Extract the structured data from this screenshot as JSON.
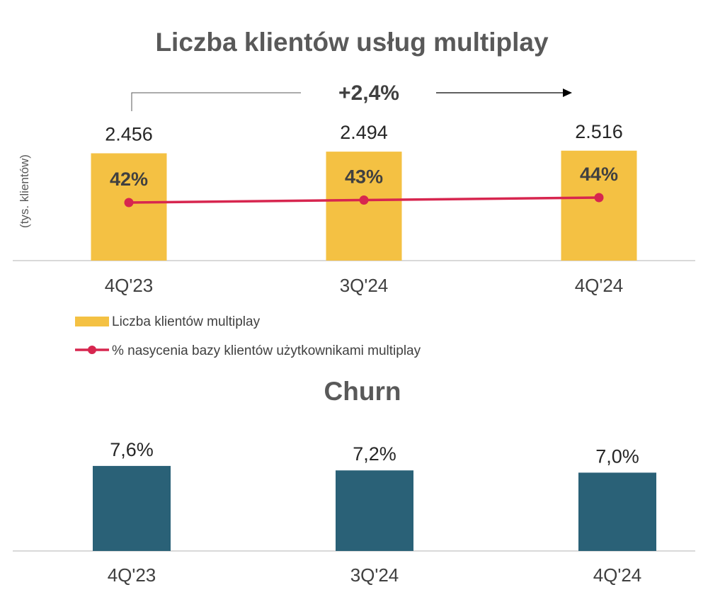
{
  "chart_data": [
    {
      "type": "bar",
      "title": "Liczba klientów usług multiplay",
      "ylabel": "(tys. klientów)",
      "growth_label": "+2,4%",
      "categories": [
        "4Q'23",
        "3Q'24",
        "4Q'24"
      ],
      "ylim": [
        0,
        2600
      ],
      "legend_position": "bottom-left",
      "series": [
        {
          "name": "Liczba klientów multiplay",
          "type": "bar",
          "color": "#F4C143",
          "values": [
            2456,
            2494,
            2516
          ],
          "labels": [
            "2.456",
            "2.494",
            "2.516"
          ]
        },
        {
          "name": "% nasycenia bazy klientów użytkownikami multiplay",
          "type": "line",
          "color": "#D7264F",
          "values": [
            42,
            43,
            44
          ],
          "labels": [
            "42%",
            "43%",
            "44%"
          ]
        }
      ]
    },
    {
      "type": "bar",
      "title": "Churn",
      "categories": [
        "4Q'23",
        "3Q'24",
        "4Q'24"
      ],
      "ylim": [
        0,
        8
      ],
      "series": [
        {
          "color": "#2A6177",
          "values": [
            7.6,
            7.2,
            7.0
          ],
          "labels": [
            "7,6%",
            "7,2%",
            "7,0%"
          ]
        }
      ]
    }
  ]
}
